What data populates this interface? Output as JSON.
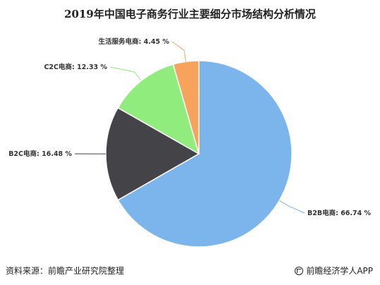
{
  "chart_data": {
    "type": "pie",
    "title": "2019年中国电子商务行业主要细分市场结构分析情况",
    "slices": [
      {
        "name": "B2B电商",
        "label": "B2B电商: 66.74 %",
        "value": 66.74,
        "color": "#7cb5ec"
      },
      {
        "name": "B2C电商",
        "label": "B2C电商: 16.48 %",
        "value": 16.48,
        "color": "#434348"
      },
      {
        "name": "C2C电商",
        "label": "C2C电商: 12.33 %",
        "value": 12.33,
        "color": "#90ed7d"
      },
      {
        "name": "生活服务电商",
        "label": "生活服务电商: 4.45 %",
        "value": 4.45,
        "color": "#f7a35c"
      }
    ]
  },
  "footer": {
    "source": "资料来源：前瞻产业研究院整理",
    "brand": "前瞻经济学人APP"
  }
}
